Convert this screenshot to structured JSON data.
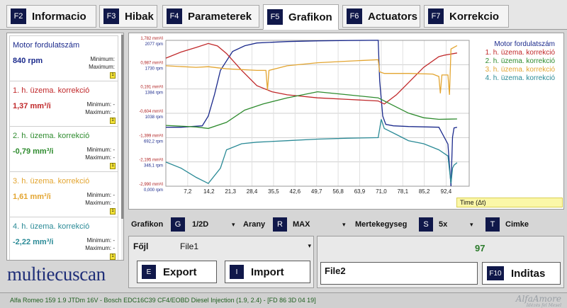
{
  "tabs": [
    {
      "key": "F2",
      "label": "Informacio"
    },
    {
      "key": "F3",
      "label": "Hibak"
    },
    {
      "key": "F4",
      "label": "Parameterek"
    },
    {
      "key": "F5",
      "label": "Grafikon"
    },
    {
      "key": "F6",
      "label": "Actuators"
    },
    {
      "key": "F7",
      "label": "Korrekcio"
    }
  ],
  "active_tab": "F5",
  "sensors": [
    {
      "name": "Motor fordulatszám",
      "value": "840 rpm",
      "min_label": "Minimum:",
      "max_label": "Maximum:",
      "color": "#1b2a8c",
      "badge": "1"
    },
    {
      "name": "1. h. üzema. korrekció",
      "value": "1,37 mm³/i",
      "min_label": "Minimum: -",
      "max_label": "Maximum: -",
      "color": "#c0282a",
      "badge": "1"
    },
    {
      "name": "2. h. üzema. korrekció",
      "value": "-0,79 mm³/i",
      "min_label": "Minimum: -",
      "max_label": "Maximum: -",
      "color": "#2e8b2e",
      "badge": "1"
    },
    {
      "name": "3. h. üzema. korrekció",
      "value": "1,61 mm³/i",
      "min_label": "Minimum: -",
      "max_label": "Maximum: -",
      "color": "#e3a530",
      "badge": "1"
    },
    {
      "name": "4. h. üzema. korrekció",
      "value": "-2,22 mm³/i",
      "min_label": "Minimum: -",
      "max_label": "Maximum: -",
      "color": "#2a8a96",
      "badge": "1"
    }
  ],
  "logo_text": "multiecuscan",
  "chart_data": {
    "type": "line",
    "x_ticks": [
      "7,2",
      "14,2",
      "21,3",
      "28,4",
      "35,5",
      "42,6",
      "49,7",
      "56,8",
      "63,9",
      "71,0",
      "78,1",
      "85,2",
      "92,4"
    ],
    "x_tick_values": [
      7.2,
      14.2,
      21.3,
      28.4,
      35.5,
      42.6,
      49.7,
      56.8,
      63.9,
      71.0,
      78.1,
      85.2,
      92.4
    ],
    "xlim": [
      0,
      100
    ],
    "xlabel": "Time (Δt)",
    "y_ticks_corr": [
      "1,782 mm³/i",
      "0,987 mm³/i",
      "0,191 mm³/i",
      "-0,604 mm³/i",
      "-1,399 mm³/i",
      "-2,195 mm³/i",
      "-2,990 mm³/i"
    ],
    "y_ticks_corr_values": [
      1.782,
      0.987,
      0.191,
      -0.604,
      -1.399,
      -2.195,
      -2.99
    ],
    "y_ticks_rpm": [
      "2077 rpm",
      "1730 rpm",
      "1384 rpm",
      "1038 rpm",
      "692,2 rpm",
      "346,1 rpm",
      "0,000 rpm"
    ],
    "y_ticks_rpm_values": [
      2077,
      1730,
      1384,
      1038,
      692.2,
      346.1,
      0
    ],
    "ylim_corr": [
      -2.99,
      1.782
    ],
    "ylim_rpm": [
      0,
      2077
    ],
    "grid": true,
    "legend_position": "top-right",
    "series": [
      {
        "name": "Motor fordulatszám",
        "axis": "rpm",
        "color": "#1b2a8c",
        "x": [
          0,
          5,
          12,
          14,
          16,
          18,
          22,
          26,
          30,
          40,
          50,
          60,
          70,
          70.5,
          71.5,
          72.5,
          75,
          80,
          85,
          90,
          93,
          94,
          94.5,
          95,
          96
        ],
        "y": [
          840,
          840,
          860,
          1000,
          1300,
          1650,
          1920,
          2000,
          2040,
          2060,
          2070,
          2075,
          2078,
          1500,
          1000,
          880,
          860,
          850,
          845,
          840,
          600,
          0,
          700,
          830,
          840
        ]
      },
      {
        "name": "1. h. üzema. korrekció",
        "axis": "corr",
        "color": "#c0282a",
        "x": [
          0,
          5,
          10,
          14,
          17,
          20,
          25,
          30,
          35,
          40,
          50,
          60,
          70,
          72,
          76,
          80,
          85,
          90,
          92,
          96
        ],
        "y": [
          1.2,
          1.4,
          1.55,
          1.68,
          1.6,
          1.35,
          0.8,
          0.3,
          0.1,
          0.0,
          -0.1,
          -0.15,
          -0.2,
          -0.3,
          0.0,
          0.4,
          0.9,
          1.25,
          1.3,
          1.37
        ]
      },
      {
        "name": "2. h. üzema. korrekció",
        "axis": "corr",
        "color": "#2e8b2e",
        "x": [
          0,
          10,
          14,
          20,
          26,
          32,
          40,
          50,
          60,
          70,
          72,
          76,
          80,
          85,
          90,
          96
        ],
        "y": [
          -1.0,
          -1.05,
          -1.1,
          -0.9,
          -0.5,
          -0.3,
          -0.1,
          0.1,
          0.0,
          -0.1,
          -0.2,
          -0.4,
          -0.6,
          -0.75,
          -0.8,
          -0.79
        ]
      },
      {
        "name": "3. h. üzema. korrekció",
        "axis": "corr",
        "color": "#e3a530",
        "x": [
          0,
          10,
          14,
          20,
          30,
          33,
          33.5,
          34,
          40,
          50,
          60,
          70,
          70.5,
          72,
          80,
          88,
          90,
          90.5,
          91,
          93,
          93.5,
          94,
          96
        ],
        "y": [
          0.95,
          0.9,
          0.92,
          0.85,
          0.8,
          0.8,
          0.15,
          0.8,
          0.95,
          1.05,
          1.1,
          1.15,
          0.75,
          0.7,
          0.7,
          0.68,
          0.6,
          0.05,
          0.65,
          0.65,
          0.0,
          1.5,
          1.61
        ]
      },
      {
        "name": "4. h. üzema. korrekció",
        "axis": "corr",
        "color": "#2a8a96",
        "x": [
          0,
          5,
          10,
          14,
          18,
          20,
          25,
          30,
          40,
          50,
          60,
          70,
          71,
          72,
          76,
          80,
          85,
          90,
          93,
          94,
          94.5,
          95,
          96
        ],
        "y": [
          -2.2,
          -2.4,
          -2.7,
          -2.9,
          -2.4,
          -1.8,
          -1.6,
          -1.55,
          -1.5,
          -1.45,
          -1.42,
          -1.4,
          -0.8,
          -1.1,
          -1.3,
          -1.5,
          -1.6,
          -1.8,
          -2.0,
          -2.9,
          -2.4,
          -2.3,
          -2.22
        ]
      }
    ]
  },
  "controls": {
    "grafikon_label": "Grafikon",
    "grafikon_key": "G",
    "grafikon_value": "1/2D",
    "arany_label": "Arany",
    "arany_key": "R",
    "arany_value": "MAX",
    "mertekegyseg_label": "Mertekegyseg",
    "mertekegyseg_key": "S",
    "mertekegyseg_value": "5x",
    "cimke_key": "T",
    "cimke_label": "Cimke",
    "dropdown_glyph": "▾"
  },
  "file": {
    "label": "Főjl",
    "value": "File1",
    "export_key": "E",
    "export_label": "Export",
    "import_key": "I",
    "import_label": "Import"
  },
  "right_panel": {
    "counter": "97",
    "file2": "File2",
    "indit_key": "F10",
    "indit_label": "Inditas"
  },
  "status": {
    "text": "Alfa Romeo 159 1.9 JTDm 16V - Bosch EDC16C39 CF4/EOBD Diesel Injection (1.9, 2.4) - [FD 86 3D 04 19]",
    "watermark": "AlfaAmore",
    "watermark_sub": "Idézés fel Mesel"
  }
}
